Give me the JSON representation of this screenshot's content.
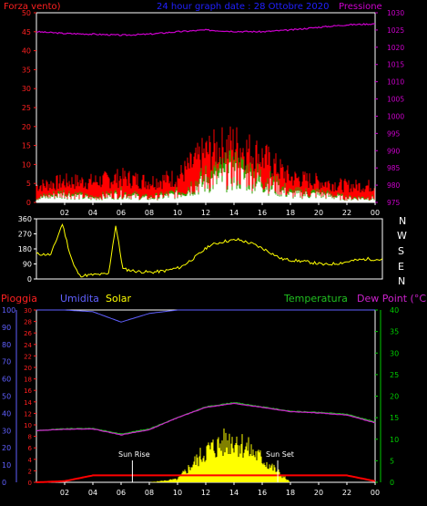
{
  "colors": {
    "background": "#000000",
    "axis": "#ffffff",
    "wind_label": "#ff2020",
    "title": "#2020ff",
    "pressure": "#cc00cc",
    "wind_gust": "#ff0000",
    "wind_avg": "#ffffff",
    "wind_mid": "#00cc00",
    "wind_dir": "#ffff00",
    "rain": "#ff0000",
    "humidity": "#6060ff",
    "solar": "#ffff00",
    "temperature": "#20c020",
    "dew_point": "#cc22cc",
    "right_axis2": "#00cc00"
  },
  "panel1": {
    "wind_label": "Forza vento)",
    "title": "24 hour graph date : 28 Ottobre 2020",
    "pressure_label": "Pressione"
  },
  "panel2": {
    "compass_labels": [
      "N",
      "W",
      "S",
      "E",
      "N"
    ]
  },
  "panel3": {
    "rain_label": "Pioggia",
    "humidity_label": "Umidita",
    "solar_label": "Solar",
    "temperature_label": "Temperatura",
    "dew_label": "Dew Point (°C)",
    "sunrise_label": "Sun Rise",
    "sunset_label": "Sun Set"
  },
  "chart_data": [
    {
      "type": "line",
      "panel": "wind-pressure",
      "x_ticks": [
        "02",
        "04",
        "06",
        "08",
        "10",
        "12",
        "14",
        "16",
        "18",
        "20",
        "22",
        "00"
      ],
      "y_left_ticks": [
        0,
        5,
        10,
        15,
        20,
        25,
        30,
        35,
        40,
        45,
        50
      ],
      "y_left_range": [
        0,
        50
      ],
      "y_right_ticks": [
        975,
        980,
        985,
        990,
        995,
        1000,
        1005,
        1010,
        1015,
        1020,
        1025,
        1030
      ],
      "y_right_range": [
        975,
        1030
      ],
      "x_hours": [
        0,
        2,
        4,
        6,
        8,
        10,
        12,
        14,
        16,
        18,
        20,
        22,
        24
      ],
      "series": [
        {
          "name": "Pressione",
          "axis": "right",
          "values": [
            1024.5,
            1024.0,
            1023.8,
            1023.5,
            1023.8,
            1024.5,
            1025.0,
            1024.6,
            1024.5,
            1025.0,
            1025.8,
            1026.5,
            1026.8
          ]
        },
        {
          "axis": "left",
          "values": [
            4,
            5,
            5,
            6,
            5,
            6,
            12,
            14,
            11,
            6,
            5,
            4,
            4
          ]
        },
        {
          "axis": "left",
          "values": [
            1,
            2,
            1,
            2,
            1,
            2,
            5,
            7,
            5,
            2,
            2,
            1,
            1
          ]
        }
      ]
    },
    {
      "type": "line",
      "panel": "wind-direction",
      "y_left_ticks": [
        0,
        90,
        180,
        270,
        360
      ],
      "y_left_range": [
        0,
        360
      ],
      "x_hours": [
        0,
        1,
        1.8,
        2.3,
        2.6,
        3,
        4,
        5,
        5.5,
        6,
        7,
        8,
        9,
        10,
        11,
        12,
        13,
        14,
        15,
        16,
        17,
        18,
        19,
        20,
        21,
        22,
        23,
        24
      ],
      "series": [
        {
          "values": [
            150,
            145,
            330,
            160,
            80,
            20,
            25,
            30,
            320,
            60,
            45,
            40,
            50,
            70,
            130,
            200,
            225,
            235,
            210,
            170,
            120,
            110,
            100,
            85,
            95,
            110,
            120,
            115
          ]
        }
      ]
    },
    {
      "type": "line",
      "panel": "rain-humidity-solar-temperature",
      "x_ticks": [
        "02",
        "04",
        "06",
        "08",
        "10",
        "12",
        "14",
        "16",
        "18",
        "20",
        "22",
        "00"
      ],
      "y_rain_ticks": [
        0,
        2,
        4,
        6,
        8,
        10,
        12,
        14,
        16,
        18,
        20,
        22,
        24,
        26,
        28,
        30
      ],
      "y_rain_range": [
        0,
        30
      ],
      "y_humidity_ticks": [
        0,
        10,
        20,
        30,
        40,
        50,
        60,
        70,
        80,
        90,
        100
      ],
      "y_humidity_range": [
        0,
        100
      ],
      "y_right_ticks": [
        0,
        5,
        10,
        15,
        20,
        25,
        30,
        35,
        40
      ],
      "y_right_range": [
        0,
        40
      ],
      "x_hours": [
        0,
        2,
        4,
        6,
        8,
        10,
        12,
        14,
        16,
        18,
        20,
        22,
        24
      ],
      "series": [
        {
          "name": "Umidita",
          "axis": "humidity",
          "values": [
            100,
            100,
            99,
            93,
            98,
            100,
            100,
            100,
            100,
            100,
            100,
            100,
            100
          ]
        },
        {
          "name": "Temperatura",
          "axis": "right",
          "values": [
            12.0,
            12.4,
            12.5,
            11.2,
            12.4,
            15.0,
            17.5,
            18.5,
            17.5,
            16.5,
            16.2,
            15.8,
            14.0
          ]
        },
        {
          "name": "Dew Point (°C)",
          "axis": "right",
          "values": [
            12.0,
            12.3,
            12.4,
            11.0,
            12.2,
            15.0,
            17.4,
            18.3,
            17.4,
            16.4,
            16.1,
            15.6,
            13.8
          ]
        },
        {
          "name": "Pioggia",
          "axis": "rain",
          "values": [
            0,
            0.2,
            1.2,
            1.2,
            1.2,
            1.2,
            1.2,
            1.2,
            1.2,
            1.2,
            1.2,
            1.2,
            0.2
          ]
        },
        {
          "name": "Solar",
          "axis": "humidity",
          "values": [
            0,
            0,
            0,
            0,
            0,
            2,
            20,
            28,
            15,
            0,
            0,
            0,
            0
          ]
        }
      ],
      "annotations": [
        {
          "text": "Sun Rise",
          "x_hour": 6.8
        },
        {
          "text": "Sun Set",
          "x_hour": 17.1
        }
      ]
    }
  ]
}
